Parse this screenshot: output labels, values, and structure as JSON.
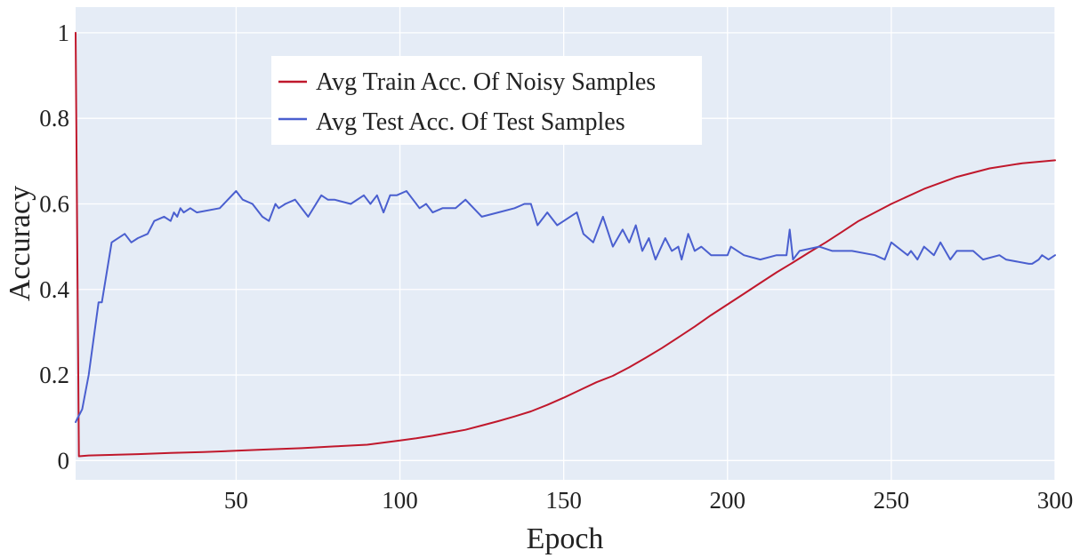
{
  "chart_data": {
    "type": "line",
    "title": "",
    "xlabel": "Epoch",
    "ylabel": "Accuracy",
    "xlim": [
      1,
      300
    ],
    "ylim": [
      -0.045,
      1.06
    ],
    "x_ticks": [
      50,
      100,
      150,
      200,
      250,
      300
    ],
    "y_ticks": [
      0,
      0.2,
      0.4,
      0.6,
      0.8,
      1
    ],
    "x_tick_labels": [
      "50",
      "100",
      "150",
      "200",
      "250",
      "300"
    ],
    "y_tick_labels": [
      "0",
      "0.2",
      "0.4",
      "0.6",
      "0.8",
      "1"
    ],
    "grid": true,
    "legend_position": "top-left-inside",
    "plot_bg": "#e5ecf6",
    "series": [
      {
        "name": "Avg Train Acc. Of Noisy Samples",
        "color": "#c0182c",
        "x": [
          1,
          2,
          5,
          10,
          20,
          30,
          40,
          50,
          60,
          70,
          80,
          90,
          95,
          100,
          105,
          110,
          115,
          120,
          125,
          130,
          135,
          140,
          145,
          150,
          155,
          160,
          165,
          170,
          175,
          180,
          185,
          190,
          195,
          200,
          205,
          210,
          215,
          220,
          225,
          230,
          235,
          240,
          250,
          260,
          270,
          280,
          290,
          300
        ],
        "y": [
          1.0,
          0.01,
          0.012,
          0.013,
          0.015,
          0.018,
          0.02,
          0.023,
          0.026,
          0.029,
          0.033,
          0.037,
          0.042,
          0.047,
          0.052,
          0.058,
          0.065,
          0.072,
          0.082,
          0.092,
          0.103,
          0.115,
          0.13,
          0.147,
          0.165,
          0.183,
          0.198,
          0.218,
          0.24,
          0.263,
          0.288,
          0.313,
          0.34,
          0.365,
          0.39,
          0.415,
          0.44,
          0.463,
          0.487,
          0.51,
          0.535,
          0.56,
          0.6,
          0.635,
          0.663,
          0.683,
          0.695,
          0.702
        ]
      },
      {
        "name": "Avg Test Acc. Of Test Samples",
        "color": "#4a5fcf",
        "x": [
          1,
          3,
          5,
          8,
          9,
          12,
          16,
          18,
          20,
          23,
          25,
          28,
          30,
          31,
          32,
          33,
          34,
          36,
          38,
          45,
          50,
          52,
          55,
          58,
          60,
          62,
          63,
          65,
          68,
          72,
          76,
          78,
          80,
          85,
          89,
          91,
          93,
          95,
          97,
          99,
          102,
          104,
          106,
          108,
          110,
          113,
          117,
          120,
          125,
          130,
          135,
          138,
          140,
          142,
          145,
          148,
          150,
          154,
          156,
          159,
          162,
          165,
          168,
          170,
          172,
          174,
          176,
          178,
          181,
          183,
          185,
          186,
          188,
          190,
          192,
          195,
          200,
          201,
          205,
          210,
          215,
          218,
          219,
          220,
          222,
          228,
          232,
          238,
          245,
          248,
          250,
          255,
          256,
          258,
          260,
          263,
          265,
          268,
          270,
          275,
          278,
          283,
          285,
          292,
          293,
          295,
          296,
          298,
          300
        ],
        "y": [
          0.09,
          0.12,
          0.2,
          0.37,
          0.37,
          0.51,
          0.53,
          0.51,
          0.52,
          0.53,
          0.56,
          0.57,
          0.56,
          0.58,
          0.57,
          0.59,
          0.58,
          0.59,
          0.58,
          0.59,
          0.63,
          0.61,
          0.6,
          0.57,
          0.56,
          0.6,
          0.59,
          0.6,
          0.61,
          0.57,
          0.62,
          0.61,
          0.61,
          0.6,
          0.62,
          0.6,
          0.62,
          0.58,
          0.62,
          0.62,
          0.63,
          0.61,
          0.59,
          0.6,
          0.58,
          0.59,
          0.59,
          0.61,
          0.57,
          0.58,
          0.59,
          0.6,
          0.6,
          0.55,
          0.58,
          0.55,
          0.56,
          0.58,
          0.53,
          0.51,
          0.57,
          0.5,
          0.54,
          0.51,
          0.55,
          0.49,
          0.52,
          0.47,
          0.52,
          0.49,
          0.5,
          0.47,
          0.53,
          0.49,
          0.5,
          0.48,
          0.48,
          0.5,
          0.48,
          0.47,
          0.48,
          0.48,
          0.54,
          0.47,
          0.49,
          0.5,
          0.49,
          0.49,
          0.48,
          0.47,
          0.51,
          0.48,
          0.49,
          0.47,
          0.5,
          0.48,
          0.51,
          0.47,
          0.49,
          0.49,
          0.47,
          0.48,
          0.47,
          0.46,
          0.46,
          0.47,
          0.48,
          0.47,
          0.48
        ]
      }
    ]
  }
}
